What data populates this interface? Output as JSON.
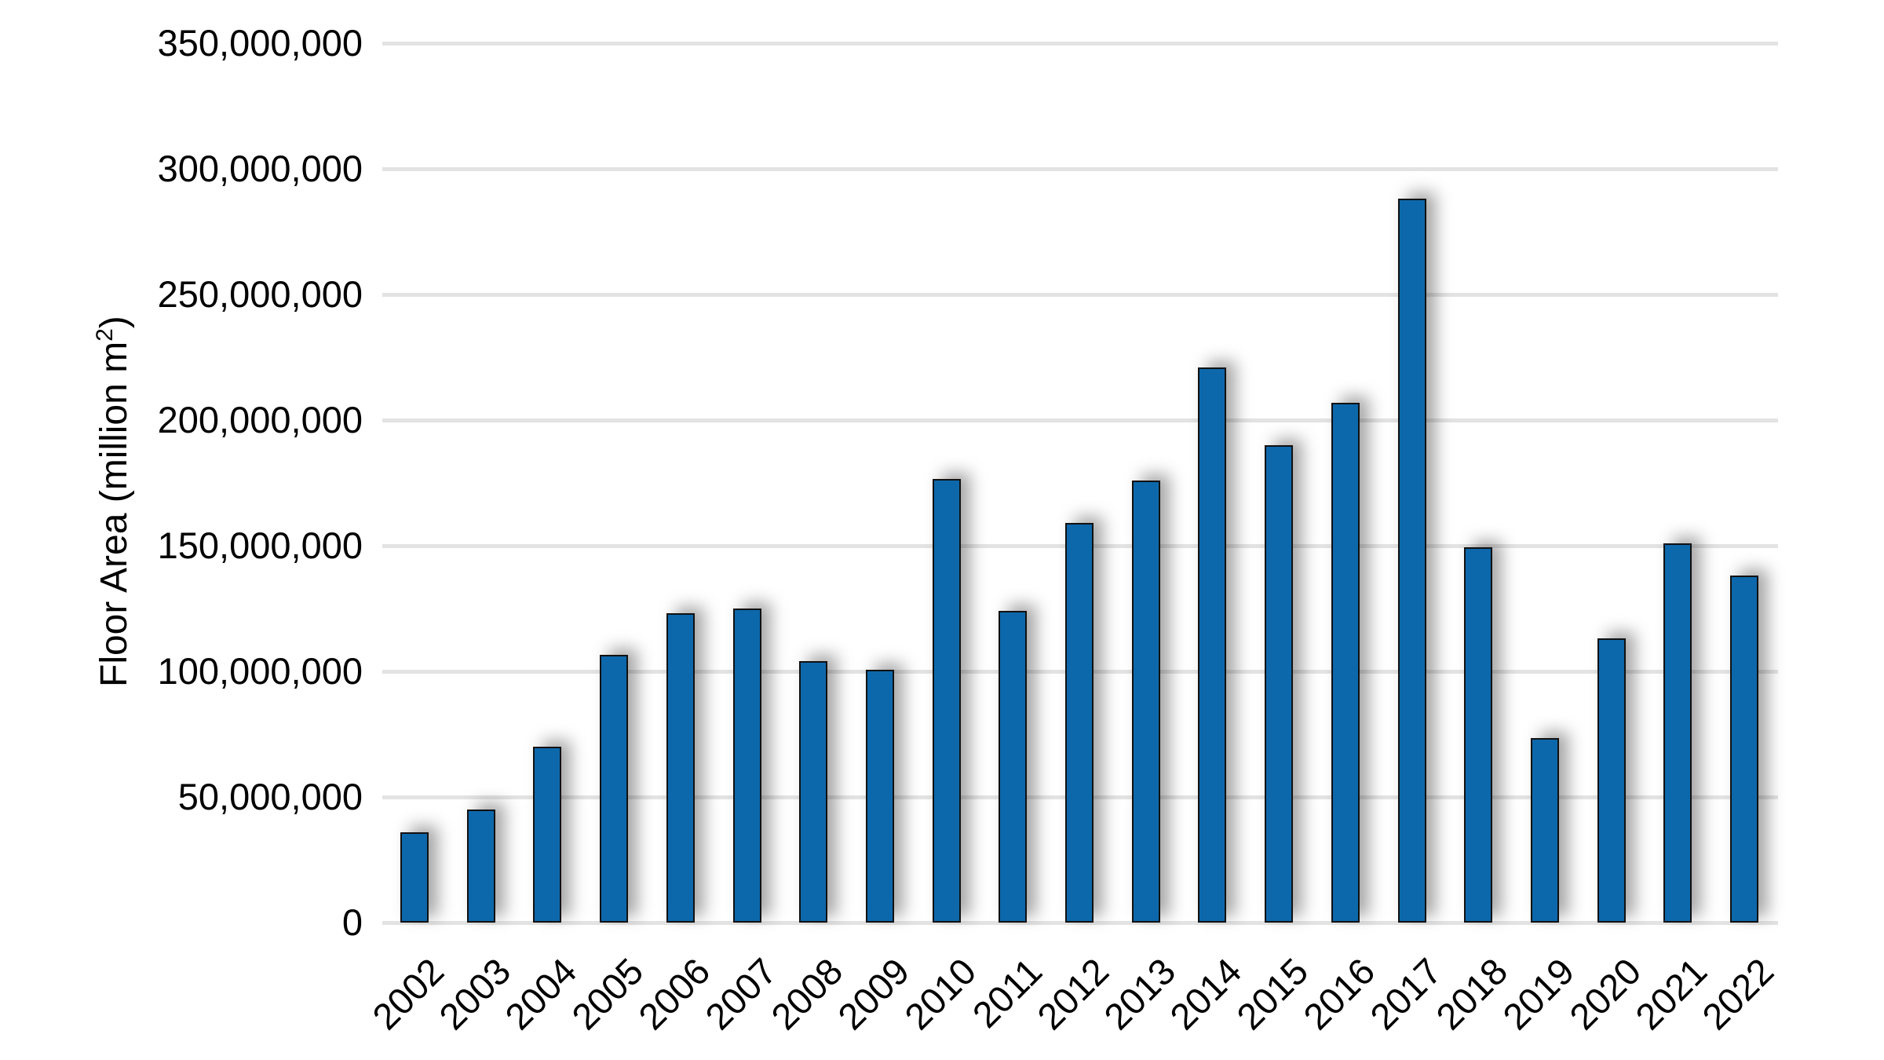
{
  "chart_data": {
    "type": "bar",
    "title": "",
    "xlabel": "",
    "ylabel": "Floor Area (million m²)",
    "ylabel_parts": {
      "text": "Floor Area (million m",
      "sup": "2",
      "close": ")"
    },
    "categories": [
      "2002",
      "2003",
      "2004",
      "2005",
      "2006",
      "2007",
      "2008",
      "2009",
      "2010",
      "2011",
      "2012",
      "2013",
      "2014",
      "2015",
      "2016",
      "2017",
      "2018",
      "2019",
      "2020",
      "2021",
      "2022"
    ],
    "series": [
      {
        "name": "Floor Area",
        "color": "#0d68ab",
        "values": [
          36000000,
          45000000,
          70000000,
          106500000,
          123000000,
          125000000,
          104000000,
          100500000,
          176500000,
          124000000,
          159000000,
          176000000,
          221000000,
          190000000,
          207000000,
          288000000,
          149500000,
          73500000,
          113000000,
          151000000,
          138000000
        ]
      }
    ],
    "ylim": [
      0,
      350000000
    ],
    "yticks": [
      0,
      50000000,
      100000000,
      150000000,
      200000000,
      250000000,
      300000000,
      350000000
    ],
    "ytick_labels": [
      "0",
      "50,000,000",
      "100,000,000",
      "150,000,000",
      "200,000,000",
      "250,000,000",
      "300,000,000",
      "350,000,000"
    ],
    "xtick_rotation": -45,
    "grid": true,
    "legend": null
  }
}
